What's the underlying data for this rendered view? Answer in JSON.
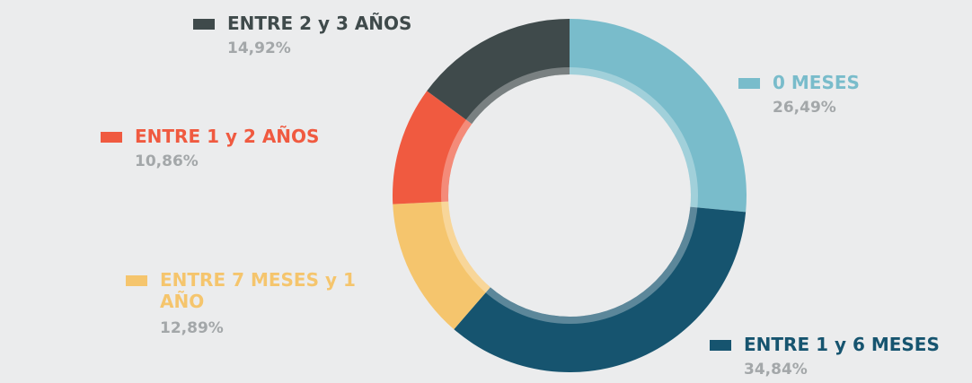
{
  "chart_data": {
    "type": "donut",
    "categories": [
      "0 MESES",
      "ENTRE 1 y 6 MESES",
      "ENTRE 7 MESES y 1 AÑO",
      "ENTRE 1 y 2 AÑOS",
      "ENTRE 2 y 3 AÑOS"
    ],
    "values": [
      26.49,
      34.84,
      12.89,
      10.86,
      14.92
    ],
    "value_labels": [
      "26,49%",
      "34,84%",
      "12,89%",
      "10,86%",
      "14,92%"
    ],
    "colors": [
      "#79bccb",
      "#16546f",
      "#f5c56d",
      "#f05a40",
      "#3f4a4b"
    ]
  }
}
